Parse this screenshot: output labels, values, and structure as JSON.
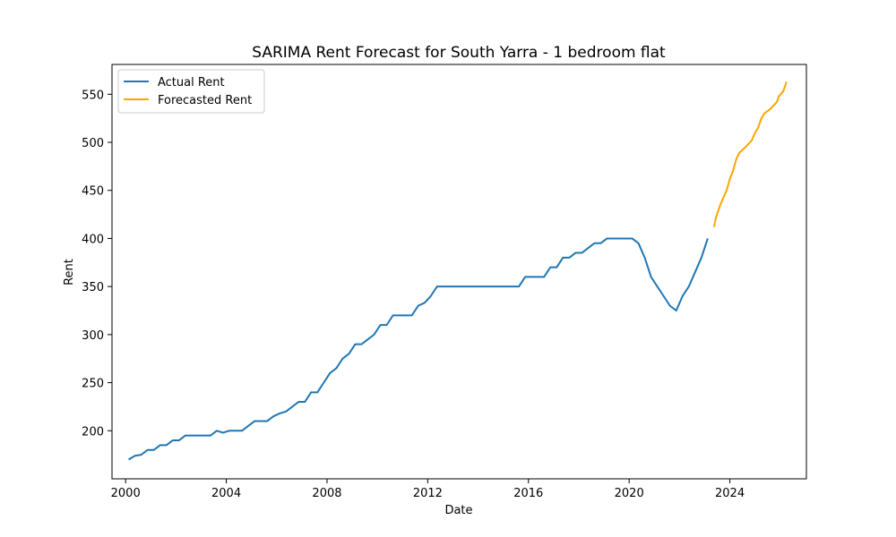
{
  "chart_data": {
    "type": "line",
    "title": "SARIMA Rent Forecast for South Yarra - 1 bedroom flat",
    "xlabel": "Date",
    "ylabel": "Rent",
    "xlim": [
      1999.46,
      2027.04
    ],
    "ylim": [
      150,
      581
    ],
    "x_ticks": [
      2000,
      2004,
      2008,
      2012,
      2016,
      2020,
      2024
    ],
    "x_tick_labels": [
      "2000",
      "2004",
      "2008",
      "2012",
      "2016",
      "2020",
      "2024"
    ],
    "y_ticks": [
      200,
      250,
      300,
      350,
      400,
      450,
      500,
      550
    ],
    "y_tick_labels": [
      "200",
      "250",
      "300",
      "350",
      "400",
      "450",
      "500",
      "550"
    ],
    "grid": false,
    "legend_position": "top-left",
    "series": [
      {
        "name": "Actual Rent",
        "color": "#1f77b4",
        "points": [
          [
            2000.12,
            170
          ],
          [
            2000.37,
            174
          ],
          [
            2000.62,
            175
          ],
          [
            2000.87,
            180
          ],
          [
            2001.12,
            180
          ],
          [
            2001.37,
            185
          ],
          [
            2001.62,
            185
          ],
          [
            2001.87,
            190
          ],
          [
            2002.12,
            190
          ],
          [
            2002.37,
            195
          ],
          [
            2002.62,
            195
          ],
          [
            2002.87,
            195
          ],
          [
            2003.12,
            195
          ],
          [
            2003.37,
            195
          ],
          [
            2003.62,
            200
          ],
          [
            2003.87,
            198
          ],
          [
            2004.12,
            200
          ],
          [
            2004.37,
            200
          ],
          [
            2004.62,
            200
          ],
          [
            2004.87,
            205
          ],
          [
            2005.12,
            210
          ],
          [
            2005.37,
            210
          ],
          [
            2005.62,
            210
          ],
          [
            2005.87,
            215
          ],
          [
            2006.12,
            218
          ],
          [
            2006.37,
            220
          ],
          [
            2006.62,
            225
          ],
          [
            2006.87,
            230
          ],
          [
            2007.12,
            230
          ],
          [
            2007.37,
            240
          ],
          [
            2007.62,
            240
          ],
          [
            2007.87,
            250
          ],
          [
            2008.12,
            260
          ],
          [
            2008.37,
            265
          ],
          [
            2008.62,
            275
          ],
          [
            2008.87,
            280
          ],
          [
            2009.12,
            290
          ],
          [
            2009.37,
            290
          ],
          [
            2009.62,
            295
          ],
          [
            2009.87,
            300
          ],
          [
            2010.12,
            310
          ],
          [
            2010.37,
            310
          ],
          [
            2010.62,
            320
          ],
          [
            2010.87,
            320
          ],
          [
            2011.12,
            320
          ],
          [
            2011.37,
            320
          ],
          [
            2011.62,
            330
          ],
          [
            2011.87,
            333
          ],
          [
            2012.12,
            340
          ],
          [
            2012.37,
            350
          ],
          [
            2012.62,
            350
          ],
          [
            2012.87,
            350
          ],
          [
            2013.12,
            350
          ],
          [
            2013.37,
            350
          ],
          [
            2013.62,
            350
          ],
          [
            2013.87,
            350
          ],
          [
            2014.12,
            350
          ],
          [
            2014.37,
            350
          ],
          [
            2014.62,
            350
          ],
          [
            2014.87,
            350
          ],
          [
            2015.12,
            350
          ],
          [
            2015.37,
            350
          ],
          [
            2015.62,
            350
          ],
          [
            2015.87,
            360
          ],
          [
            2016.12,
            360
          ],
          [
            2016.37,
            360
          ],
          [
            2016.62,
            360
          ],
          [
            2016.87,
            370
          ],
          [
            2017.12,
            370
          ],
          [
            2017.37,
            380
          ],
          [
            2017.62,
            380
          ],
          [
            2017.87,
            385
          ],
          [
            2018.12,
            385
          ],
          [
            2018.37,
            390
          ],
          [
            2018.62,
            395
          ],
          [
            2018.87,
            395
          ],
          [
            2019.12,
            400
          ],
          [
            2019.37,
            400
          ],
          [
            2019.62,
            400
          ],
          [
            2019.87,
            400
          ],
          [
            2020.12,
            400
          ],
          [
            2020.37,
            395
          ],
          [
            2020.62,
            380
          ],
          [
            2020.87,
            360
          ],
          [
            2021.12,
            350
          ],
          [
            2021.37,
            340
          ],
          [
            2021.62,
            330
          ],
          [
            2021.87,
            325
          ],
          [
            2022.12,
            340
          ],
          [
            2022.37,
            350
          ],
          [
            2022.62,
            365
          ],
          [
            2022.87,
            380
          ],
          [
            2023.12,
            400
          ]
        ]
      },
      {
        "name": "Forecasted Rent",
        "color": "#ffa500",
        "points": [
          [
            2023.37,
            412
          ],
          [
            2023.45,
            422
          ],
          [
            2023.62,
            435
          ],
          [
            2023.87,
            450
          ],
          [
            2024.0,
            462
          ],
          [
            2024.12,
            470
          ],
          [
            2024.25,
            482
          ],
          [
            2024.37,
            489
          ],
          [
            2024.62,
            495
          ],
          [
            2024.87,
            502
          ],
          [
            2025.0,
            510
          ],
          [
            2025.12,
            515
          ],
          [
            2025.25,
            525
          ],
          [
            2025.37,
            530
          ],
          [
            2025.62,
            535
          ],
          [
            2025.87,
            542
          ],
          [
            2025.95,
            548
          ],
          [
            2026.12,
            553
          ],
          [
            2026.25,
            563
          ]
        ]
      }
    ]
  }
}
